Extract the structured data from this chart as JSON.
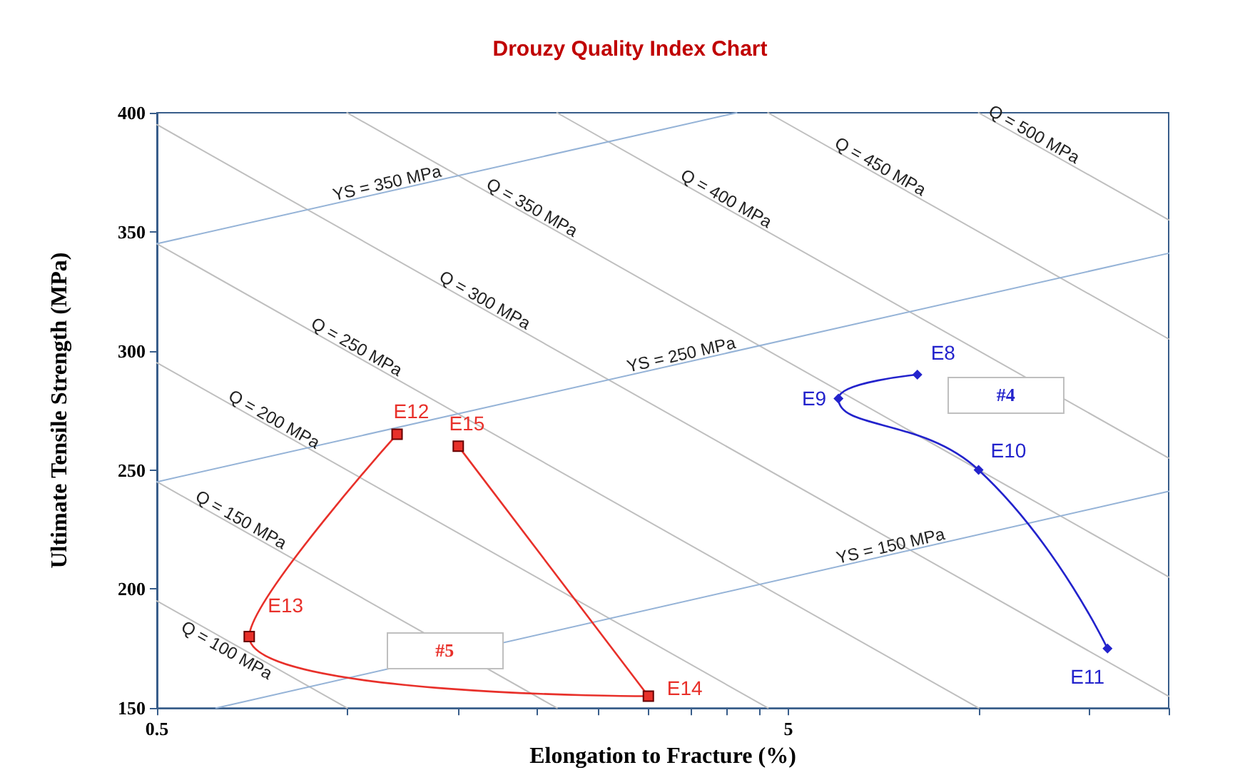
{
  "chart_data": {
    "type": "line",
    "title": "Drouzy Quality Index Chart",
    "xlabel": "Elongation to Fracture (%)",
    "ylabel": "Ultimate Tensile Strength (MPa)",
    "log": "x",
    "grid": false,
    "legend": false,
    "xlim": [
      0.5,
      20
    ],
    "xticks": [
      0.5,
      {
        "value": 1,
        "label": null
      },
      {
        "value": 1.5,
        "label": null
      },
      {
        "value": 2,
        "label": null
      },
      {
        "value": 2.5,
        "label": null
      },
      {
        "value": 3,
        "label": null
      },
      {
        "value": 3.5,
        "label": null
      },
      {
        "value": 4,
        "label": null
      },
      {
        "value": 4.5,
        "label": null
      },
      5,
      {
        "value": 10,
        "label": null
      },
      {
        "value": 15,
        "label": null
      },
      {
        "value": 20,
        "label": null
      }
    ],
    "ylim": [
      150,
      400
    ],
    "yticks": [
      150,
      200,
      250,
      300,
      350,
      400
    ],
    "series": [
      {
        "name": "Q = 100 MPa",
        "color": "#bfbfbf",
        "marker": "none",
        "x": [
          0.5,
          1
        ],
        "values": [
          195,
          150
        ]
      },
      {
        "name": "Q = 150 MPa",
        "color": "#bfbfbf",
        "marker": "none",
        "x": [
          0.5,
          2.15
        ],
        "values": [
          245,
          150
        ]
      },
      {
        "name": "Q = 200 MPa",
        "color": "#bfbfbf",
        "marker": "none",
        "x": [
          0.5,
          4.64
        ],
        "values": [
          295,
          150
        ]
      },
      {
        "name": "Q = 250 MPa",
        "color": "#bfbfbf",
        "marker": "none",
        "x": [
          0.5,
          10
        ],
        "values": [
          345,
          150
        ]
      },
      {
        "name": "Q = 300 MPa",
        "color": "#bfbfbf",
        "marker": "none",
        "x": [
          0.5,
          20
        ],
        "values": [
          395,
          155
        ]
      },
      {
        "name": "Q = 350 MPa",
        "color": "#bfbfbf",
        "marker": "none",
        "x": [
          1,
          20
        ],
        "values": [
          400,
          205
        ]
      },
      {
        "name": "Q = 400 MPa",
        "color": "#bfbfbf",
        "marker": "none",
        "x": [
          2.15,
          20
        ],
        "values": [
          400,
          255
        ]
      },
      {
        "name": "Q = 450 MPa",
        "color": "#bfbfbf",
        "marker": "none",
        "x": [
          4.64,
          20
        ],
        "values": [
          400,
          305
        ]
      },
      {
        "name": "Q = 500 MPa",
        "color": "#bfbfbf",
        "marker": "none",
        "x": [
          10,
          20
        ],
        "values": [
          400,
          355
        ]
      },
      {
        "name": "YS = 150 MPa",
        "color": "#95b3d7",
        "marker": "none",
        "x": [
          0.62,
          20
        ],
        "values": [
          150,
          241
        ]
      },
      {
        "name": "YS = 250 MPa",
        "color": "#95b3d7",
        "marker": "none",
        "x": [
          0.5,
          20
        ],
        "values": [
          245,
          341
        ]
      },
      {
        "name": "YS = 350 MPa",
        "color": "#95b3d7",
        "marker": "none",
        "x": [
          0.5,
          4.14
        ],
        "values": [
          345,
          400
        ]
      },
      {
        "name": "#4",
        "color": "#2323cc",
        "marker": "diamond",
        "x": [
          8,
          6,
          10,
          16
        ],
        "values": [
          290,
          280,
          250,
          175
        ],
        "value_labels": [
          "E8",
          "E9",
          "E10",
          "E11"
        ]
      },
      {
        "name": "#5",
        "color": "#e8302a",
        "marker": "square",
        "x": [
          1.2,
          0.7,
          3,
          1.5
        ],
        "values": [
          265,
          180,
          155,
          260
        ],
        "value_labels": [
          "E12",
          "E13",
          "E14",
          "E15"
        ]
      }
    ]
  }
}
